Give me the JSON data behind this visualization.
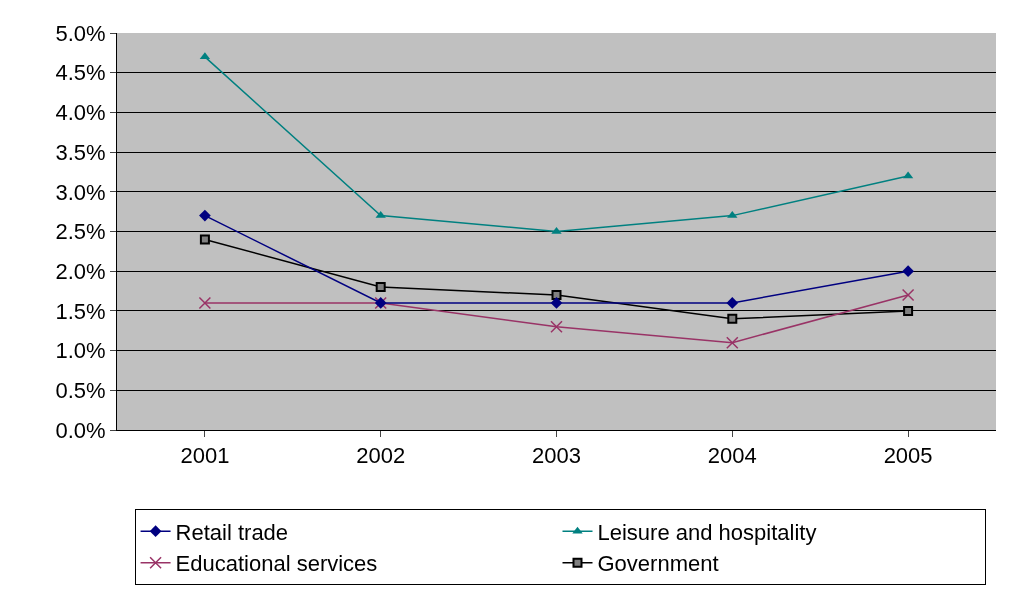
{
  "chart_data": {
    "type": "line",
    "categories": [
      "2001",
      "2002",
      "2003",
      "2004",
      "2005"
    ],
    "series": [
      {
        "name": "Retail trade",
        "color": "#000080",
        "marker": "diamond",
        "values": [
          2.7,
          1.6,
          1.6,
          1.6,
          2.0
        ]
      },
      {
        "name": "Leisure and hospitality",
        "color": "#008080",
        "marker": "triangle",
        "values": [
          4.7,
          2.7,
          2.5,
          2.7,
          3.2
        ]
      },
      {
        "name": "Educational services",
        "color": "#993366",
        "marker": "cross",
        "values": [
          1.6,
          1.6,
          1.3,
          1.1,
          1.7
        ]
      },
      {
        "name": "Government",
        "color": "#000000",
        "marker": "square",
        "values": [
          2.4,
          1.8,
          1.7,
          1.4,
          1.5
        ]
      }
    ],
    "ylim": [
      0,
      5
    ],
    "yticks": [
      {
        "value": 0,
        "label": "0.0%"
      },
      {
        "value": 0.5,
        "label": "0.5%"
      },
      {
        "value": 1,
        "label": "1.0%"
      },
      {
        "value": 1.5,
        "label": "1.5%"
      },
      {
        "value": 2,
        "label": "2.0%"
      },
      {
        "value": 2.5,
        "label": "2.5%"
      },
      {
        "value": 3,
        "label": "3.0%"
      },
      {
        "value": 3.5,
        "label": "3.5%"
      },
      {
        "value": 4,
        "label": "4.0%"
      },
      {
        "value": 4.5,
        "label": "4.5%"
      },
      {
        "value": 5,
        "label": "5.0%"
      }
    ],
    "grid": "y",
    "legend": "bottom",
    "line_style": "solid"
  }
}
